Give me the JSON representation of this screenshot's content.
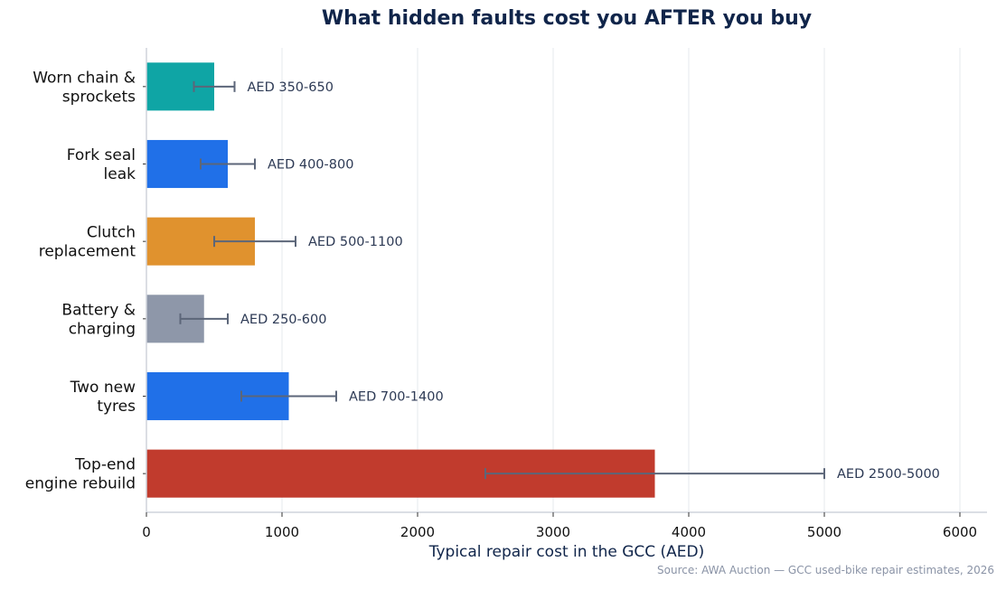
{
  "chart_data": {
    "type": "bar",
    "orientation": "horizontal",
    "title": "What hidden faults cost you AFTER you buy",
    "xlabel": "Typical repair cost in the GCC (AED)",
    "ylabel": "",
    "xlim": [
      0,
      6200
    ],
    "xticks": [
      0,
      1000,
      2000,
      3000,
      4000,
      5000,
      6000
    ],
    "grid": "vertical",
    "categories": [
      [
        "Worn chain &",
        "sprockets"
      ],
      [
        "Fork seal",
        "leak"
      ],
      [
        "Clutch",
        "replacement"
      ],
      [
        "Battery &",
        "charging"
      ],
      [
        "Two new",
        "tyres"
      ],
      [
        "Top-end",
        "engine rebuild"
      ]
    ],
    "values": [
      500,
      600,
      800,
      425,
      1050,
      3750
    ],
    "ranges": [
      [
        350,
        650
      ],
      [
        400,
        800
      ],
      [
        500,
        1100
      ],
      [
        250,
        600
      ],
      [
        700,
        1400
      ],
      [
        2500,
        5000
      ]
    ],
    "range_labels": [
      "AED 350-650",
      "AED 400-800",
      "AED 500-1100",
      "AED 250-600",
      "AED 700-1400",
      "AED 2500-5000"
    ],
    "colors": [
      "#0fa5a5",
      "#2070e8",
      "#e0922e",
      "#8e97a9",
      "#2070e8",
      "#c13b2d"
    ],
    "errorbar_color": "#5c6679"
  },
  "source": "Source: AWA Auction — GCC used-bike repair estimates, 2026"
}
